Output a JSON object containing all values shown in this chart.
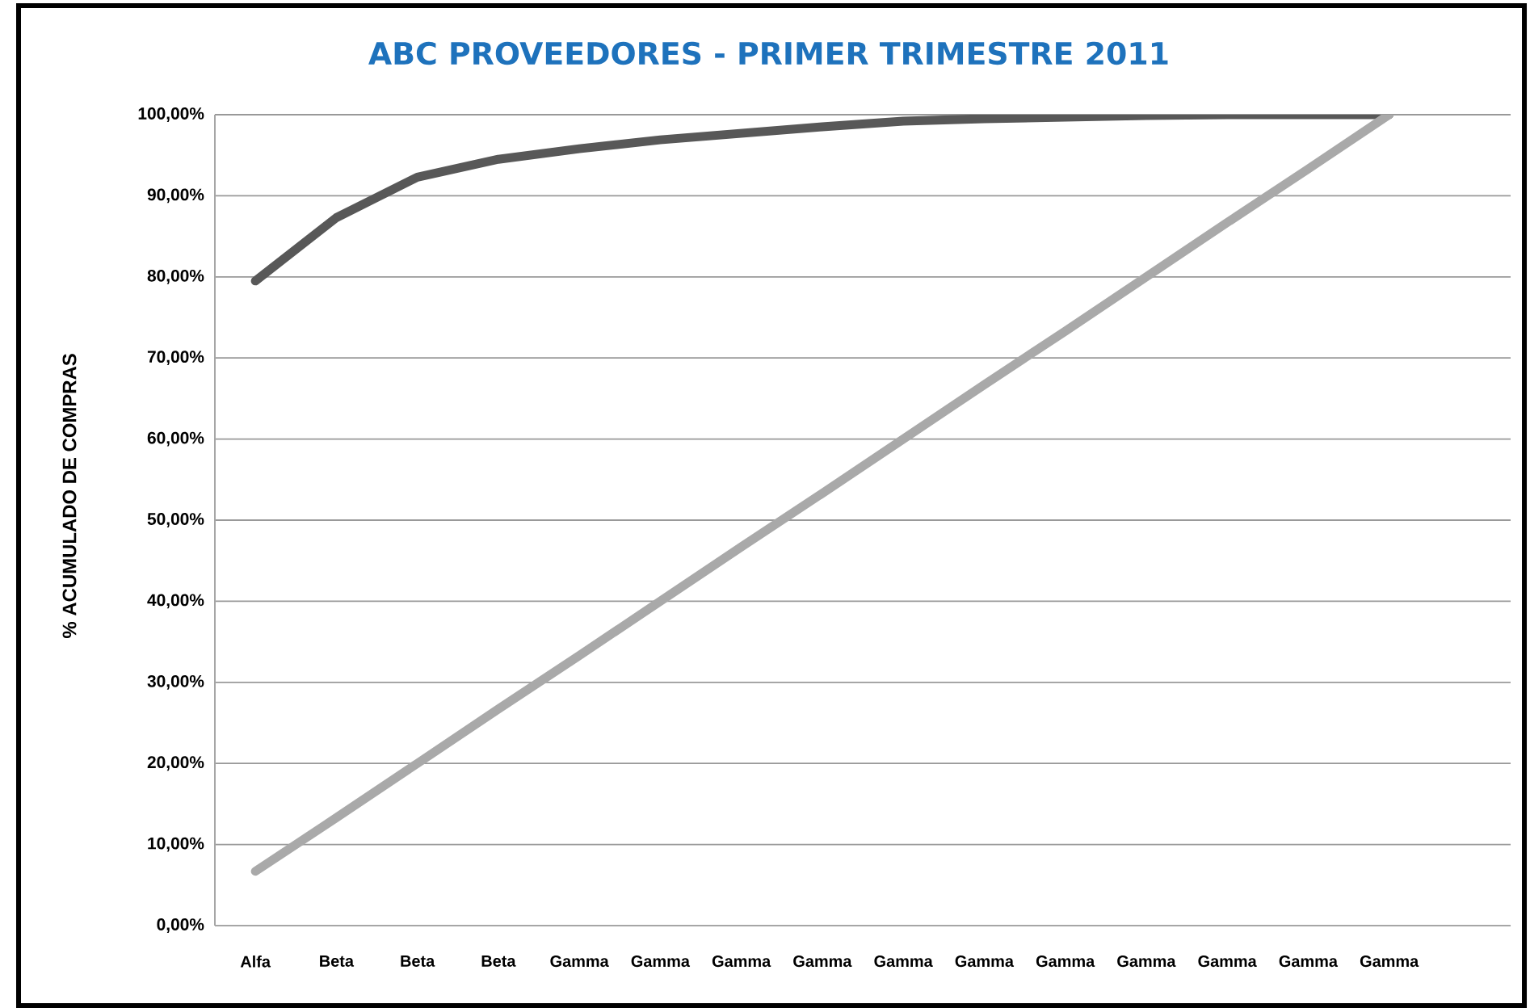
{
  "chart_data": {
    "type": "line",
    "title": "ABC PROVEEDORES - PRIMER TRIMESTRE 2011",
    "ylabel": "% ACUMULADO DE  COMPRAS",
    "categories": [
      "Alfa",
      "Beta",
      "Beta",
      "Beta",
      "Gamma",
      "Gamma",
      "Gamma",
      "Gamma",
      "Gamma",
      "Gamma",
      "Gamma",
      "Gamma",
      "Gamma",
      "Gamma",
      "Gamma",
      null
    ],
    "series": [
      {
        "color": "#585858",
        "values": [
          79.5,
          87.3,
          92.3,
          94.5,
          95.8,
          96.9,
          97.7,
          98.5,
          99.2,
          99.5,
          99.7,
          99.9,
          100,
          100,
          100,
          null
        ]
      },
      {
        "color": "#a9a9a9",
        "values": [
          6.7,
          13.3,
          20,
          26.7,
          33.3,
          40,
          46.7,
          53.3,
          60,
          66.7,
          73.3,
          80,
          86.7,
          93.3,
          100,
          null
        ]
      }
    ],
    "ylim": [
      0,
      100
    ],
    "yticks": [
      {
        "value": 0,
        "label": "0,00%"
      },
      {
        "value": 10,
        "label": "10,00%"
      },
      {
        "value": 20,
        "label": "20,00%"
      },
      {
        "value": 30,
        "label": "30,00%"
      },
      {
        "value": 40,
        "label": "40,00%"
      },
      {
        "value": 50,
        "label": "50,00%"
      },
      {
        "value": 60,
        "label": "60,00%"
      },
      {
        "value": 70,
        "label": "70,00%"
      },
      {
        "value": 80,
        "label": "80,00%"
      },
      {
        "value": 90,
        "label": "90,00%"
      },
      {
        "value": 100,
        "label": "100,00%"
      }
    ],
    "grid": "y",
    "marker": "none",
    "line_style": "solid"
  }
}
